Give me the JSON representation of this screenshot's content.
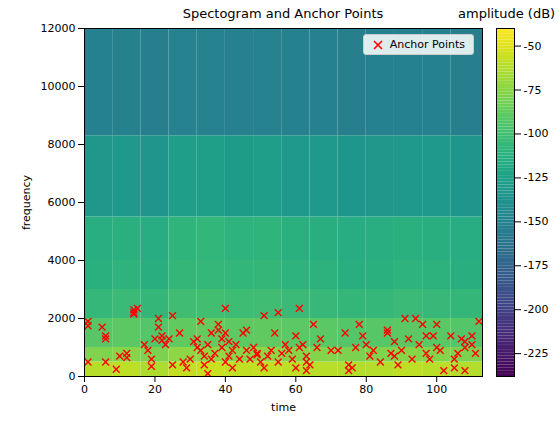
{
  "chart_data": {
    "type": "spectrogram",
    "title": "Spectogram and Anchor Points",
    "xlabel": "time",
    "ylabel": "frequency",
    "xlim": [
      0,
      113
    ],
    "ylim": [
      0,
      12000
    ],
    "xticks": [
      0,
      20,
      40,
      60,
      80,
      100
    ],
    "yticks": [
      0,
      2000,
      4000,
      6000,
      8000,
      10000,
      12000
    ],
    "time_bins": [
      0,
      8,
      16,
      24,
      32,
      40,
      48,
      56,
      64,
      72,
      80,
      88,
      96,
      104,
      113
    ],
    "freq_bins": [
      0,
      500,
      1000,
      2000,
      3000,
      4000,
      5500,
      8300,
      12000
    ],
    "cells": [
      [
        -62,
        -60,
        -64,
        -58,
        -57,
        -59,
        -58,
        -60,
        -61,
        -63,
        -62,
        -60,
        -61,
        -63
      ],
      [
        -78,
        -76,
        -79,
        -74,
        -73,
        -75,
        -74,
        -76,
        -77,
        -79,
        -78,
        -76,
        -77,
        -79
      ],
      [
        -92,
        -90,
        -93,
        -88,
        -87,
        -89,
        -88,
        -90,
        -91,
        -93,
        -92,
        -90,
        -91,
        -93
      ],
      [
        -106,
        -104,
        -107,
        -101,
        -100,
        -102,
        -101,
        -104,
        -105,
        -107,
        -106,
        -104,
        -105,
        -107
      ],
      [
        -112,
        -110,
        -113,
        -107,
        -106,
        -108,
        -107,
        -110,
        -111,
        -113,
        -112,
        -110,
        -111,
        -113
      ],
      [
        -114,
        -112,
        -115,
        -109,
        -108,
        -110,
        -109,
        -112,
        -113,
        -115,
        -114,
        -112,
        -113,
        -115
      ],
      [
        -133,
        -131,
        -134,
        -128,
        -127,
        -129,
        -128,
        -131,
        -132,
        -134,
        -133,
        -131,
        -132,
        -134
      ],
      [
        -152,
        -152,
        -153,
        -151,
        -151,
        -152,
        -151,
        -152,
        -152,
        -153,
        -152,
        -152,
        -152,
        -153
      ]
    ],
    "colorbar": {
      "label": "amplitude (dB)",
      "color": "viridis",
      "range": [
        -238,
        -40
      ],
      "ticks": [
        -50,
        -75,
        -100,
        -125,
        -150,
        -175,
        -200,
        -225
      ]
    },
    "legend": "upper right",
    "series": [
      {
        "name": "Anchor Points",
        "type": "scatter",
        "marker": "x",
        "color": "#ff0000",
        "x": [
          1,
          1,
          1,
          5,
          6,
          6,
          6,
          9,
          10,
          12,
          12,
          14,
          14,
          14,
          15,
          17,
          18,
          19,
          19,
          20,
          21,
          21,
          22,
          22,
          23,
          24,
          25,
          25,
          27,
          28,
          29,
          30,
          31,
          32,
          32,
          33,
          33,
          34,
          34,
          35,
          35,
          36,
          36,
          37,
          38,
          38,
          39,
          39,
          40,
          40,
          40,
          41,
          41,
          42,
          42,
          43,
          44,
          45,
          46,
          46,
          47,
          48,
          49,
          49,
          50,
          51,
          51,
          52,
          53,
          54,
          55,
          55,
          56,
          57,
          58,
          59,
          60,
          60,
          61,
          61,
          62,
          63,
          63,
          63,
          64,
          65,
          66,
          67,
          70,
          72,
          74,
          75,
          75,
          76,
          77,
          78,
          79,
          80,
          81,
          82,
          84,
          86,
          86,
          87,
          88,
          88,
          89,
          90,
          91,
          92,
          93,
          94,
          95,
          96,
          97,
          97,
          98,
          99,
          100,
          100,
          101,
          102,
          104,
          105,
          105,
          106,
          107,
          108,
          108,
          108,
          110,
          110,
          111,
          112
        ],
        "y": [
          1900,
          1750,
          500,
          1700,
          500,
          1400,
          1300,
          250,
          700,
          650,
          800,
          2300,
          2200,
          2150,
          2350,
          1100,
          900,
          600,
          350,
          1300,
          1700,
          2000,
          1250,
          1400,
          1100,
          1300,
          2100,
          400,
          1500,
          500,
          300,
          600,
          1200,
          1000,
          1300,
          1900,
          900,
          700,
          400,
          1100,
          100,
          1500,
          600,
          800,
          1800,
          1600,
          1300,
          1000,
          1500,
          500,
          2350,
          700,
          1200,
          900,
          300,
          1100,
          600,
          1500,
          1600,
          900,
          600,
          1000,
          800,
          750,
          500,
          300,
          2100,
          700,
          900,
          1500,
          500,
          2200,
          800,
          1100,
          900,
          600,
          300,
          1400,
          2350,
          1000,
          1100,
          700,
          500,
          200,
          400,
          1800,
          1000,
          1300,
          900,
          900,
          1500,
          200,
          400,
          300,
          1000,
          1800,
          1400,
          1100,
          700,
          900,
          500,
          1600,
          1500,
          800,
          1200,
          700,
          400,
          900,
          2000,
          1300,
          600,
          2000,
          1100,
          1800,
          1400,
          800,
          600,
          1400,
          1000,
          1800,
          900,
          200,
          1400,
          600,
          300,
          800,
          1300,
          1200,
          1000,
          200,
          1400,
          1100,
          800,
          1900
        ]
      }
    ]
  }
}
